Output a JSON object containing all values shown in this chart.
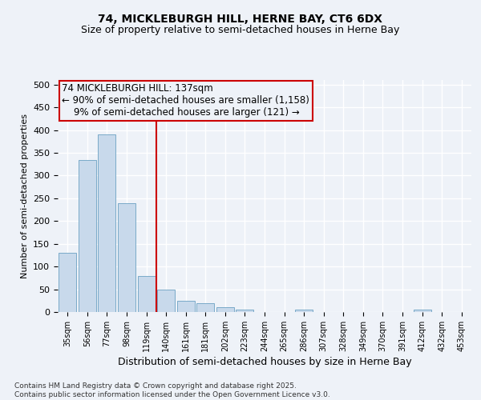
{
  "title": "74, MICKLEBURGH HILL, HERNE BAY, CT6 6DX",
  "subtitle": "Size of property relative to semi-detached houses in Herne Bay",
  "xlabel": "Distribution of semi-detached houses by size in Herne Bay",
  "ylabel": "Number of semi-detached properties",
  "categories": [
    "35sqm",
    "56sqm",
    "77sqm",
    "98sqm",
    "119sqm",
    "140sqm",
    "161sqm",
    "181sqm",
    "202sqm",
    "223sqm",
    "244sqm",
    "265sqm",
    "286sqm",
    "307sqm",
    "328sqm",
    "349sqm",
    "370sqm",
    "391sqm",
    "412sqm",
    "432sqm",
    "453sqm"
  ],
  "values": [
    130,
    335,
    390,
    240,
    80,
    50,
    25,
    20,
    10,
    5,
    0,
    0,
    5,
    0,
    0,
    0,
    0,
    0,
    5,
    0,
    0
  ],
  "bar_color": "#c8d9eb",
  "bar_edge_color": "#7aaac8",
  "vline_x_index": 5,
  "vline_color": "#cc0000",
  "annotation_line1": "74 MICKLEBURGH HILL: 137sqm",
  "annotation_line2": "← 90% of semi-detached houses are smaller (1,158)",
  "annotation_line3": "    9% of semi-detached houses are larger (121) →",
  "annotation_box_color": "#cc0000",
  "background_color": "#eef2f8",
  "grid_color": "#ffffff",
  "ylim": [
    0,
    510
  ],
  "yticks": [
    0,
    50,
    100,
    150,
    200,
    250,
    300,
    350,
    400,
    450,
    500
  ],
  "footer_text": "Contains HM Land Registry data © Crown copyright and database right 2025.\nContains public sector information licensed under the Open Government Licence v3.0.",
  "title_fontsize": 10,
  "subtitle_fontsize": 9,
  "annotation_fontsize": 8.5
}
